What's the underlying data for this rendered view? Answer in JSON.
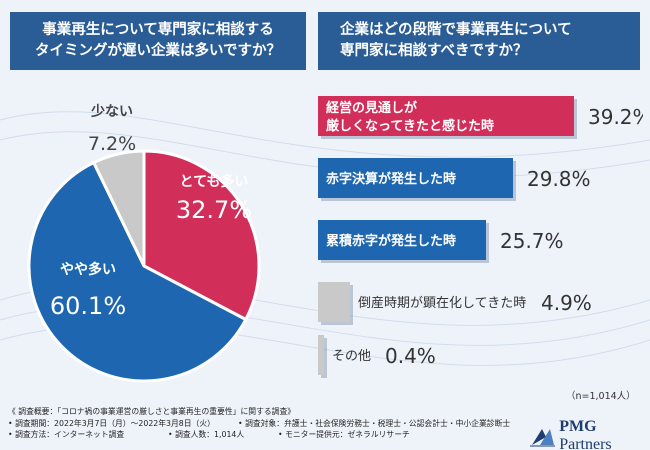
{
  "questions": {
    "left": "事業再生について専門家に相談する\nタイミングが遅い企業は多いですか？",
    "right": "企業はどの段階で事業再生について\n専門家に相談すべきですか？"
  },
  "sample_note": "（n=1,014人）",
  "footer": {
    "overview": "《 調査概要：「コロナ禍の事業運営の厳しさと事業再生の重要性」に関する調査》",
    "period": "• 調査期間：2022年3月7日（月）〜2022年3月8日（火）",
    "target": "• 調査対象：弁護士・社会保険労務士・税理士・公認会計士・中小企業診断士",
    "method": "• 調査方法：インターネット調査",
    "count": "• 調査人数：1,014人",
    "provider": "• モニター提供元：ゼネラルリサーチ"
  },
  "logo": {
    "bold": "PMG",
    "regular": "Partners"
  },
  "chart_data": [
    {
      "type": "pie",
      "title": "事業再生について専門家に相談するタイミングが遅い企業は多いですか？",
      "slices": [
        {
          "label": "とても多い",
          "value": 32.7,
          "value_label": "32.7%",
          "color": "#d12f5a"
        },
        {
          "label": "やや多い",
          "value": 60.1,
          "value_label": "60.1%",
          "color": "#1e66b0"
        },
        {
          "label": "少ない",
          "value": 7.2,
          "value_label": "7.2%",
          "color": "#c9c9c9"
        }
      ]
    },
    {
      "type": "bar",
      "orientation": "horizontal",
      "title": "企業はどの段階で事業再生について専門家に相談すべきですか？",
      "unit": "%",
      "categories": [
        "経営の見通しが\n厳しくなってきたと感じた時",
        "赤字決算が発生した時",
        "累積赤字が発生した時",
        "倒産時期が顕在化してきた時",
        "その他"
      ],
      "values": [
        39.2,
        29.8,
        25.7,
        4.9,
        0.4
      ],
      "value_labels": [
        "39.2%",
        "29.8%",
        "25.7%",
        "4.9%",
        "0.4%"
      ],
      "colors": [
        "#d12f5a",
        "#1e66b0",
        "#1e66b0",
        "#c9c9c9",
        "#c9c9c9"
      ]
    }
  ]
}
